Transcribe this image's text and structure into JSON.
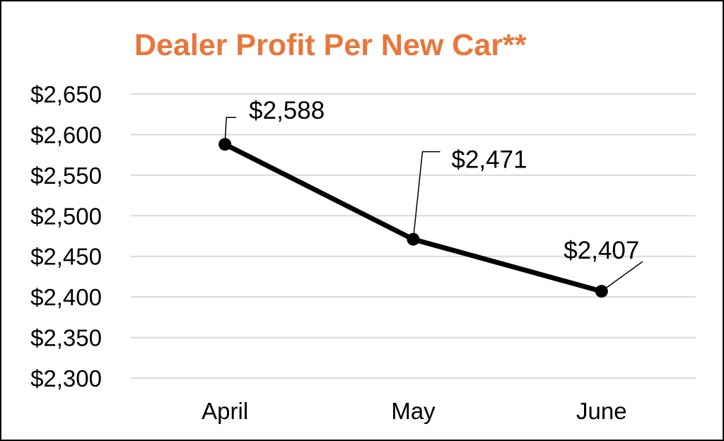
{
  "chart_data": {
    "type": "line",
    "title": "Dealer Profit Per New Car**",
    "xlabel": "",
    "ylabel": "",
    "categories": [
      "April",
      "May",
      "June"
    ],
    "series": [
      {
        "values": [
          2588,
          2471,
          2407
        ],
        "data_labels": [
          "$2,588",
          "$2,471",
          "$2,407"
        ],
        "color": "#000000"
      }
    ],
    "ylim": [
      2300,
      2650
    ],
    "y_step": 50,
    "y_tick_labels": [
      "$2,300",
      "$2,350",
      "$2,400",
      "$2,450",
      "$2,500",
      "$2,550",
      "$2,600",
      "$2,650"
    ],
    "grid": true,
    "legend": "none",
    "colors": {
      "title": "#E8773A",
      "gridline": "#D9D9D9",
      "line": "#000000"
    }
  }
}
